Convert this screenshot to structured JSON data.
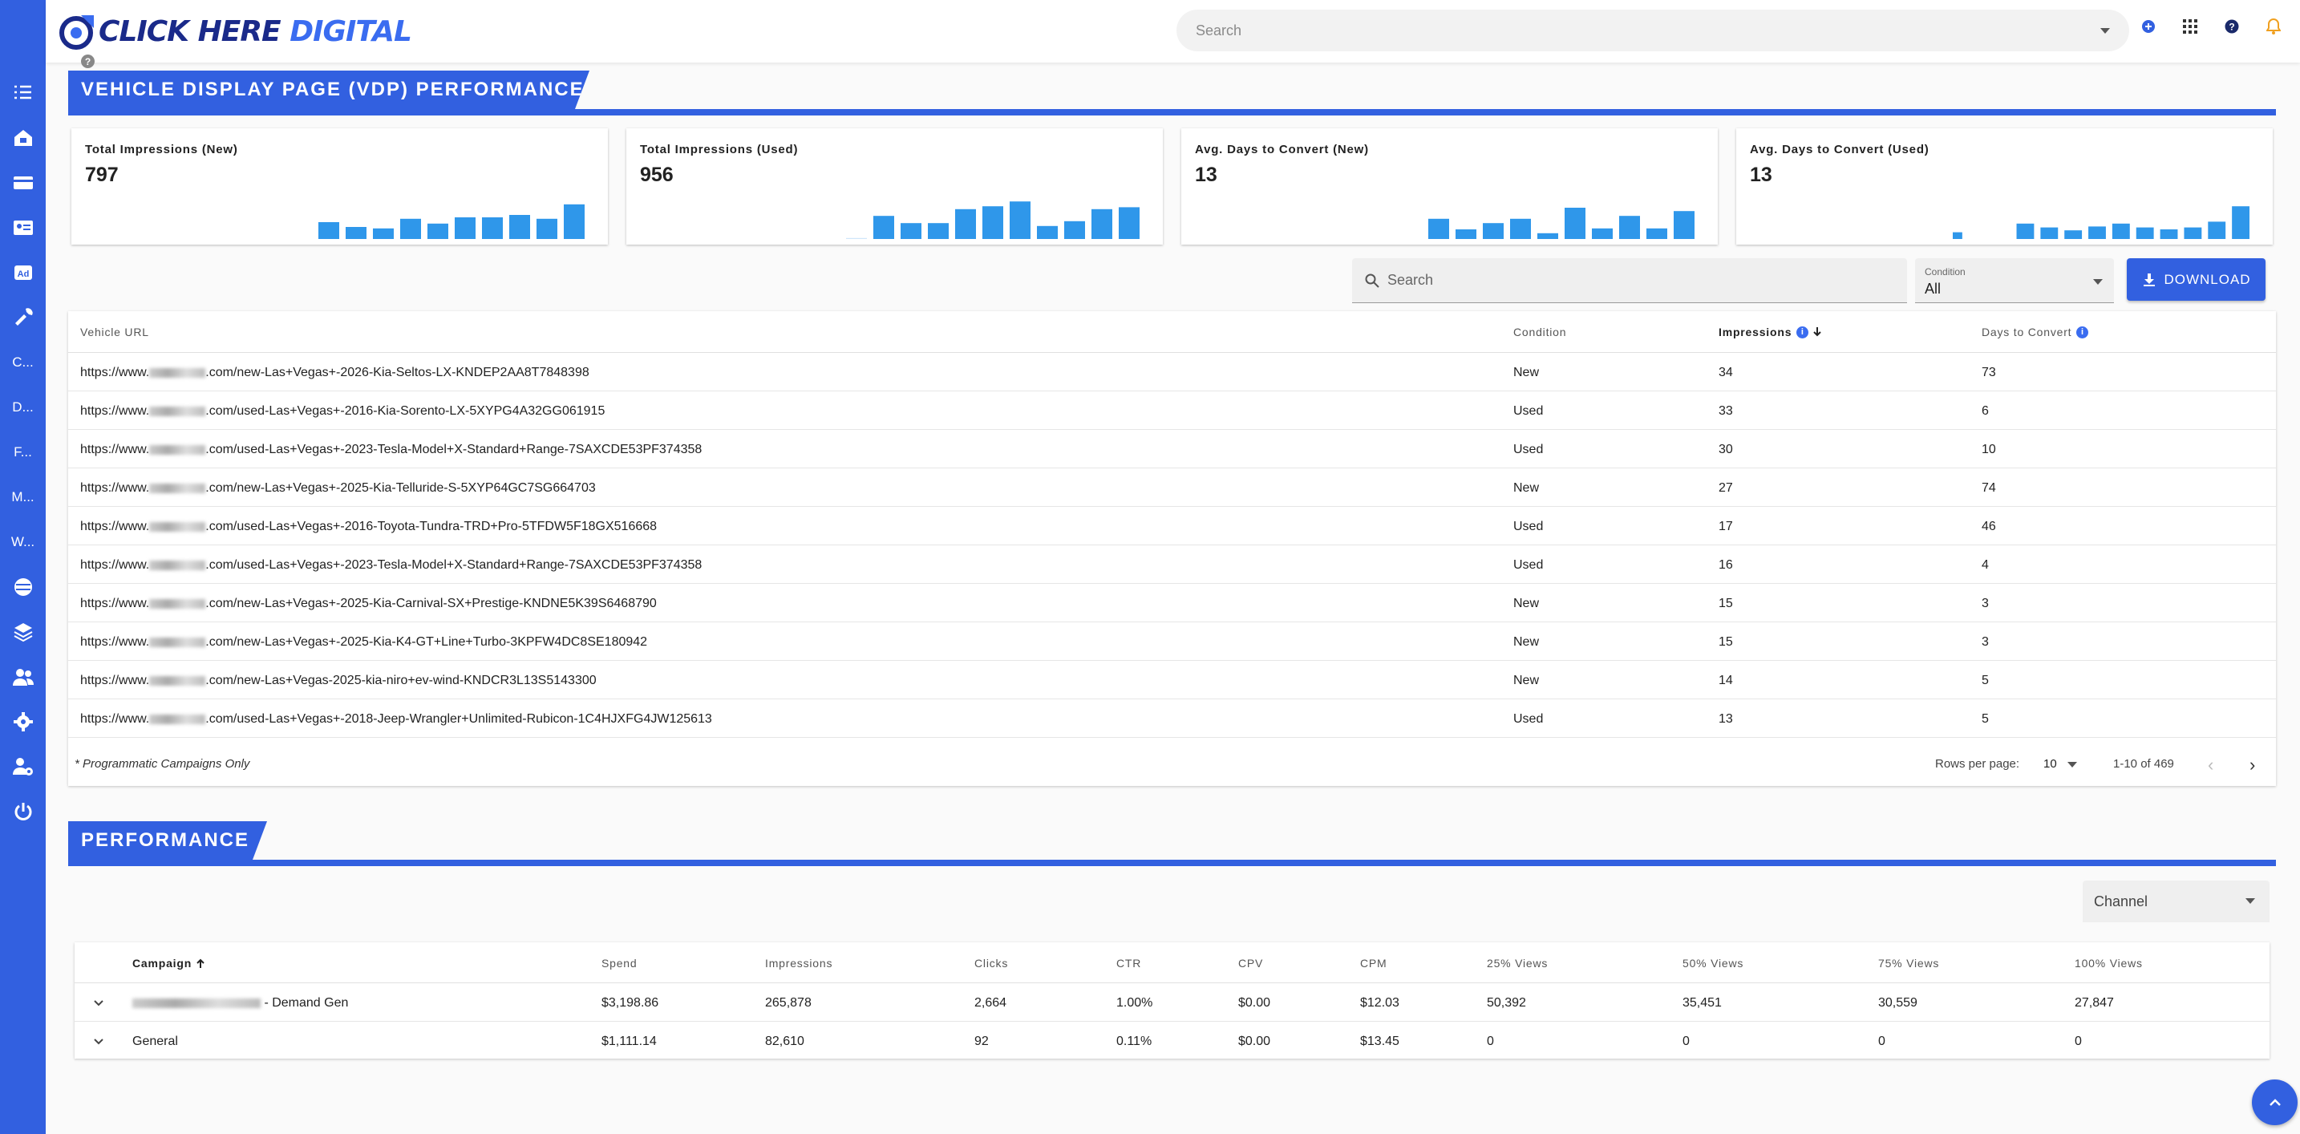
{
  "brand": {
    "name_part1": "CLICK HERE",
    "name_part2": "DIGITAL",
    "primary": "#3260e0",
    "dark": "#1a2a8a",
    "bar": "#2f97ea"
  },
  "header": {
    "search_placeholder": "Search"
  },
  "sidebar": {
    "items": [
      {
        "icon": "checklist-icon"
      },
      {
        "icon": "home-money-icon"
      },
      {
        "icon": "credit-card-icon"
      },
      {
        "icon": "id-card-icon"
      },
      {
        "icon": "ad-icon",
        "text": "Ad"
      },
      {
        "icon": "tools-icon"
      },
      {
        "text": "C..."
      },
      {
        "text": "D..."
      },
      {
        "text": "F..."
      },
      {
        "text": "M..."
      },
      {
        "text": "W..."
      },
      {
        "icon": "globe-icon"
      },
      {
        "icon": "layers-icon"
      },
      {
        "icon": "users-icon"
      },
      {
        "icon": "gear-icon"
      },
      {
        "icon": "user-gear-icon"
      },
      {
        "icon": "power-icon"
      }
    ]
  },
  "vdp": {
    "title": "VEHICLE DISPLAY PAGE (VDP) PERFORMANCE",
    "cards": [
      {
        "title": "Total Impressions (New)",
        "value": "797",
        "bars": [
          0.35,
          0.25,
          0.22,
          0.42,
          0.32,
          0.45,
          0.45,
          0.5,
          0.42,
          0.72
        ]
      },
      {
        "title": "Total Impressions (Used)",
        "value": "956",
        "bars": [
          0.02,
          0.48,
          0.33,
          0.33,
          0.62,
          0.68,
          0.78,
          0.27,
          0.37,
          0.62,
          0.66
        ]
      },
      {
        "title": "Avg. Days to Convert (New)",
        "value": "13",
        "bars": [
          0.42,
          0.2,
          0.33,
          0.42,
          0.12,
          0.65,
          0.22,
          0.48,
          0.22,
          0.58
        ]
      },
      {
        "title": "Avg. Days to Convert (Used)",
        "value": "13",
        "bars": [
          0.14,
          0.0,
          0.0,
          0.32,
          0.24,
          0.18,
          0.26,
          0.32,
          0.24,
          0.2,
          0.24,
          0.36,
          0.68
        ]
      }
    ],
    "search_placeholder": "Search",
    "condition_label": "Condition",
    "condition_value": "All",
    "download_label": "DOWNLOAD",
    "columns": {
      "url": "Vehicle URL",
      "condition": "Condition",
      "impressions": "Impressions",
      "days": "Days to Convert"
    },
    "rows": [
      {
        "url_prefix": "https://www.",
        "url_suffix": ".com/new-Las+Vegas+-2026-Kia-Seltos-LX-KNDEP2AA8T7848398",
        "condition": "New",
        "impressions": "34",
        "days": "73"
      },
      {
        "url_prefix": "https://www.",
        "url_suffix": ".com/used-Las+Vegas+-2016-Kia-Sorento-LX-5XYPG4A32GG061915",
        "condition": "Used",
        "impressions": "33",
        "days": "6"
      },
      {
        "url_prefix": "https://www.",
        "url_suffix": ".com/used-Las+Vegas+-2023-Tesla-Model+X-Standard+Range-7SAXCDE53PF374358",
        "condition": "Used",
        "impressions": "30",
        "days": "10"
      },
      {
        "url_prefix": "https://www.",
        "url_suffix": ".com/new-Las+Vegas+-2025-Kia-Telluride-S-5XYP64GC7SG664703",
        "condition": "New",
        "impressions": "27",
        "days": "74"
      },
      {
        "url_prefix": "https://www.",
        "url_suffix": ".com/used-Las+Vegas+-2016-Toyota-Tundra-TRD+Pro-5TFDW5F18GX516668",
        "condition": "Used",
        "impressions": "17",
        "days": "46"
      },
      {
        "url_prefix": "https://www.",
        "url_suffix": ".com/used-Las+Vegas+-2023-Tesla-Model+X-Standard+Range-7SAXCDE53PF374358",
        "condition": "Used",
        "impressions": "16",
        "days": "4"
      },
      {
        "url_prefix": "https://www.",
        "url_suffix": ".com/new-Las+Vegas+-2025-Kia-Carnival-SX+Prestige-KNDNE5K39S6468790",
        "condition": "New",
        "impressions": "15",
        "days": "3"
      },
      {
        "url_prefix": "https://www.",
        "url_suffix": ".com/new-Las+Vegas+-2025-Kia-K4-GT+Line+Turbo-3KPFW4DC8SE180942",
        "condition": "New",
        "impressions": "15",
        "days": "3"
      },
      {
        "url_prefix": "https://www.",
        "url_suffix": ".com/new-Las+Vegas-2025-kia-niro+ev-wind-KNDCR3L13S5143300",
        "condition": "New",
        "impressions": "14",
        "days": "5"
      },
      {
        "url_prefix": "https://www.",
        "url_suffix": ".com/used-Las+Vegas+-2018-Jeep-Wrangler+Unlimited-Rubicon-1C4HJXFG4JW125613",
        "condition": "Used",
        "impressions": "13",
        "days": "5"
      }
    ],
    "footnote": "* Programmatic Campaigns Only",
    "rows_per_page_label": "Rows per page:",
    "rows_per_page": "10",
    "range": "1-10 of 469"
  },
  "performance": {
    "title": "PERFORMANCE",
    "channel_placeholder": "Channel",
    "columns": [
      "Campaign",
      "Spend",
      "Impressions",
      "Clicks",
      "CTR",
      "CPV",
      "CPM",
      "25% Views",
      "50% Views",
      "75% Views",
      "100% Views"
    ],
    "rows": [
      {
        "campaign": "- Demand Gen",
        "redacted": true,
        "cells": [
          "$3,198.86",
          "265,878",
          "2,664",
          "1.00%",
          "$0.00",
          "$12.03",
          "50,392",
          "35,451",
          "30,559",
          "27,847"
        ]
      },
      {
        "campaign": "General",
        "redacted": false,
        "cells": [
          "$1,111.14",
          "82,610",
          "92",
          "0.11%",
          "$0.00",
          "$13.45",
          "0",
          "0",
          "0",
          "0"
        ]
      }
    ]
  }
}
